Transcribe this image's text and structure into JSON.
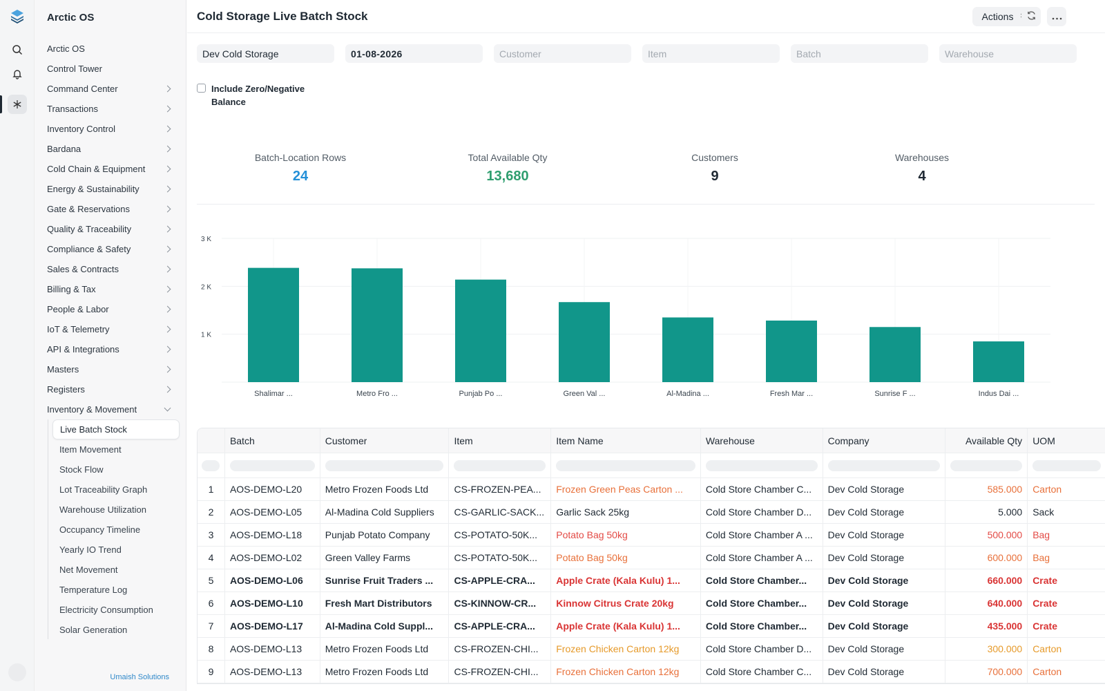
{
  "app": {
    "name": "Arctic OS",
    "footer": "Umaish Solutions"
  },
  "sidebar": {
    "items": [
      {
        "label": "Arctic OS",
        "chevron": false
      },
      {
        "label": "Control Tower",
        "chevron": false
      },
      {
        "label": "Command Center",
        "chevron": true
      },
      {
        "label": "Transactions",
        "chevron": true
      },
      {
        "label": "Inventory Control",
        "chevron": true
      },
      {
        "label": "Bardana",
        "chevron": true
      },
      {
        "label": "Cold Chain & Equipment",
        "chevron": true
      },
      {
        "label": "Energy & Sustainability",
        "chevron": true
      },
      {
        "label": "Gate & Reservations",
        "chevron": true
      },
      {
        "label": "Quality & Traceability",
        "chevron": true
      },
      {
        "label": "Compliance & Safety",
        "chevron": true
      },
      {
        "label": "Sales & Contracts",
        "chevron": true
      },
      {
        "label": "Billing & Tax",
        "chevron": true
      },
      {
        "label": "People & Labor",
        "chevron": true
      },
      {
        "label": "IoT & Telemetry",
        "chevron": true
      },
      {
        "label": "API & Integrations",
        "chevron": true
      },
      {
        "label": "Masters",
        "chevron": true
      },
      {
        "label": "Registers",
        "chevron": true
      },
      {
        "label": "Inventory & Movement",
        "chevron": true,
        "expanded": true
      }
    ],
    "subitems": [
      {
        "label": "Live Batch Stock",
        "active": true
      },
      {
        "label": "Item Movement"
      },
      {
        "label": "Stock Flow"
      },
      {
        "label": "Lot Traceability Graph"
      },
      {
        "label": "Warehouse Utilization"
      },
      {
        "label": "Occupancy Timeline"
      },
      {
        "label": "Yearly IO Trend"
      },
      {
        "label": "Net Movement"
      },
      {
        "label": "Temperature Log"
      },
      {
        "label": "Electricity Consumption"
      },
      {
        "label": "Solar Generation"
      }
    ]
  },
  "header": {
    "title": "Cold Storage Live Batch Stock",
    "actions_label": "Actions"
  },
  "filters": {
    "company": "Dev Cold Storage",
    "date": "01-08-2026",
    "customer_placeholder": "Customer",
    "item_placeholder": "Item",
    "batch_placeholder": "Batch",
    "warehouse_placeholder": "Warehouse",
    "include_zero_label": "Include Zero/Negative Balance",
    "include_zero_checked": false
  },
  "kpis": [
    {
      "label": "Batch-Location Rows",
      "value": "24",
      "color": "#2490d8"
    },
    {
      "label": "Total Available Qty",
      "value": "13,680",
      "color": "#2f9e6f"
    },
    {
      "label": "Customers",
      "value": "9",
      "color": "#1f2933"
    },
    {
      "label": "Warehouses",
      "value": "4",
      "color": "#1f2933"
    }
  ],
  "chart_data": {
    "type": "bar",
    "categories": [
      "Shalimar ...",
      "Metro Fro ...",
      "Punjab Po ...",
      "Green Val ...",
      "Al-Madina ...",
      "Fresh Mar ...",
      "Sunrise F ...",
      "Indus Dai ..."
    ],
    "values": [
      2385,
      2375,
      2140,
      1670,
      1350,
      1285,
      1150,
      850
    ],
    "ylim": [
      0,
      3000
    ],
    "yticks": [
      1000,
      2000,
      3000
    ],
    "ytick_labels": [
      "1 K",
      "2 K",
      "3 K"
    ],
    "color": "#11968a",
    "grid": true
  },
  "table": {
    "columns": [
      "Batch",
      "Customer",
      "Item",
      "Item Name",
      "Warehouse",
      "Company",
      "Available Qty",
      "UOM"
    ],
    "rows": [
      {
        "n": "1",
        "batch": "AOS-DEMO-L20",
        "customer": "Metro Frozen Foods Ltd",
        "item": "CS-FROZEN-PEA...",
        "item_name": "Frozen Green Peas Carton ...",
        "warehouse": "Cold Store Chamber C...",
        "company": "Dev Cold Storage",
        "qty": "585.000",
        "uom": "Carton",
        "color": "#e8703a",
        "bold": false
      },
      {
        "n": "2",
        "batch": "AOS-DEMO-L05",
        "customer": "Al-Madina Cold Suppliers",
        "item": "CS-GARLIC-SACK...",
        "item_name": "Garlic Sack 25kg",
        "warehouse": "Cold Store Chamber D...",
        "company": "Dev Cold Storage",
        "qty": "5.000",
        "uom": "Sack",
        "color": "#1f2933",
        "bold": false
      },
      {
        "n": "3",
        "batch": "AOS-DEMO-L18",
        "customer": "Punjab Potato Company",
        "item": "CS-POTATO-50K...",
        "item_name": "Potato Bag 50kg",
        "warehouse": "Cold Store Chamber A ...",
        "company": "Dev Cold Storage",
        "qty": "500.000",
        "uom": "Bag",
        "color": "#e34a45",
        "bold": false
      },
      {
        "n": "4",
        "batch": "AOS-DEMO-L02",
        "customer": "Green Valley Farms",
        "item": "CS-POTATO-50K...",
        "item_name": "Potato Bag 50kg",
        "warehouse": "Cold Store Chamber A ...",
        "company": "Dev Cold Storage",
        "qty": "600.000",
        "uom": "Bag",
        "color": "#e8703a",
        "bold": false
      },
      {
        "n": "5",
        "batch": "AOS-DEMO-L06",
        "customer": "Sunrise Fruit Traders ...",
        "item": "CS-APPLE-CRA...",
        "item_name": "Apple Crate (Kala Kulu) 1...",
        "warehouse": "Cold Store Chamber...",
        "company": "Dev Cold Storage",
        "qty": "660.000",
        "uom": "Crate",
        "color": "#d93434",
        "bold": true
      },
      {
        "n": "6",
        "batch": "AOS-DEMO-L10",
        "customer": "Fresh Mart Distributors",
        "item": "CS-KINNOW-CR...",
        "item_name": "Kinnow Citrus Crate 20kg",
        "warehouse": "Cold Store Chamber...",
        "company": "Dev Cold Storage",
        "qty": "640.000",
        "uom": "Crate",
        "color": "#d93434",
        "bold": true
      },
      {
        "n": "7",
        "batch": "AOS-DEMO-L17",
        "customer": "Al-Madina Cold Suppl...",
        "item": "CS-APPLE-CRA...",
        "item_name": "Apple Crate (Kala Kulu) 1...",
        "warehouse": "Cold Store Chamber...",
        "company": "Dev Cold Storage",
        "qty": "435.000",
        "uom": "Crate",
        "color": "#d93434",
        "bold": true
      },
      {
        "n": "8",
        "batch": "AOS-DEMO-L13",
        "customer": "Metro Frozen Foods Ltd",
        "item": "CS-FROZEN-CHI...",
        "item_name": "Frozen Chicken Carton 12kg",
        "warehouse": "Cold Store Chamber D...",
        "company": "Dev Cold Storage",
        "qty": "300.000",
        "uom": "Carton",
        "color": "#e69a2a",
        "bold": false
      },
      {
        "n": "9",
        "batch": "AOS-DEMO-L13",
        "customer": "Metro Frozen Foods Ltd",
        "item": "CS-FROZEN-CHI...",
        "item_name": "Frozen Chicken Carton 12kg",
        "warehouse": "Cold Store Chamber C...",
        "company": "Dev Cold Storage",
        "qty": "700.000",
        "uom": "Carton",
        "color": "#e8703a",
        "bold": false
      }
    ]
  }
}
